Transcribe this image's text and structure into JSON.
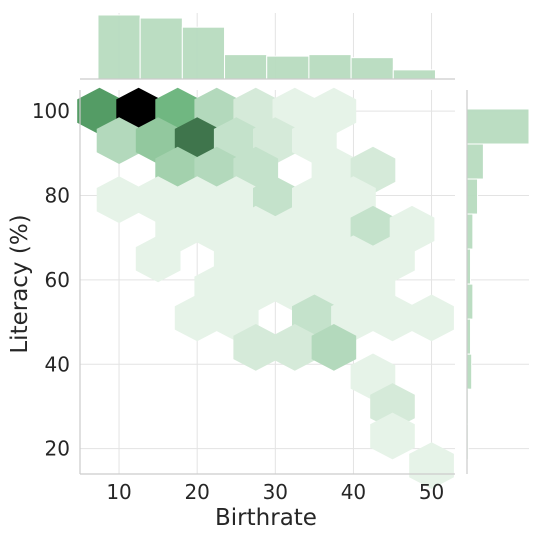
{
  "chart_data": {
    "type": "hexbin-jointplot",
    "xlabel": "Birthrate",
    "ylabel": "Literacy (%)",
    "xlim": [
      5.0,
      53.0
    ],
    "ylim": [
      14.0,
      105.0
    ],
    "x_ticks": [
      10,
      20,
      30,
      40,
      50
    ],
    "y_ticks": [
      20,
      40,
      60,
      80,
      100
    ],
    "x_tick_labels": [
      "10",
      "20",
      "30",
      "40",
      "50"
    ],
    "y_tick_labels": [
      "20",
      "40",
      "60",
      "80",
      "100"
    ],
    "grid": true,
    "cmap": [
      "#f7fbf7",
      "#5faf72",
      "#000000"
    ],
    "hexbins": [
      {
        "x": 7.5,
        "y": 100,
        "count": 5
      },
      {
        "x": 12.5,
        "y": 100,
        "count": 9
      },
      {
        "x": 17.5,
        "y": 100,
        "count": 4
      },
      {
        "x": 22.5,
        "y": 100,
        "count": 2
      },
      {
        "x": 27.5,
        "y": 100,
        "count": 1
      },
      {
        "x": 32.5,
        "y": 100,
        "count": 0.5
      },
      {
        "x": 37.5,
        "y": 100,
        "count": 0.5
      },
      {
        "x": 10,
        "y": 93,
        "count": 2
      },
      {
        "x": 15,
        "y": 93,
        "count": 3
      },
      {
        "x": 20,
        "y": 93,
        "count": 6
      },
      {
        "x": 25,
        "y": 93,
        "count": 1.5
      },
      {
        "x": 30,
        "y": 93,
        "count": 1
      },
      {
        "x": 35,
        "y": 93,
        "count": 0.5
      },
      {
        "x": 17.5,
        "y": 86,
        "count": 2.5
      },
      {
        "x": 22.5,
        "y": 86,
        "count": 2
      },
      {
        "x": 27.5,
        "y": 86,
        "count": 1.5
      },
      {
        "x": 37.5,
        "y": 86,
        "count": 0.5
      },
      {
        "x": 42.5,
        "y": 86,
        "count": 1
      },
      {
        "x": 10,
        "y": 79,
        "count": 0.5
      },
      {
        "x": 15,
        "y": 79,
        "count": 0.5
      },
      {
        "x": 20,
        "y": 79,
        "count": 0.5
      },
      {
        "x": 25,
        "y": 79,
        "count": 0.5
      },
      {
        "x": 30,
        "y": 79,
        "count": 1.5
      },
      {
        "x": 35,
        "y": 79,
        "count": 0.5
      },
      {
        "x": 40,
        "y": 79,
        "count": 0.5
      },
      {
        "x": 17.5,
        "y": 72,
        "count": 0.5
      },
      {
        "x": 22.5,
        "y": 72,
        "count": 0.5
      },
      {
        "x": 27.5,
        "y": 72,
        "count": 0.5
      },
      {
        "x": 32.5,
        "y": 72,
        "count": 0.5
      },
      {
        "x": 37.5,
        "y": 72,
        "count": 0.5
      },
      {
        "x": 42.5,
        "y": 72,
        "count": 1.5
      },
      {
        "x": 47.5,
        "y": 72,
        "count": 0.5
      },
      {
        "x": 15,
        "y": 65,
        "count": 0.5
      },
      {
        "x": 25,
        "y": 65,
        "count": 0.5
      },
      {
        "x": 30,
        "y": 65,
        "count": 0.5
      },
      {
        "x": 35,
        "y": 65,
        "count": 0.5
      },
      {
        "x": 40,
        "y": 65,
        "count": 0.5
      },
      {
        "x": 45,
        "y": 65,
        "count": 0.5
      },
      {
        "x": 22.5,
        "y": 58,
        "count": 0.5
      },
      {
        "x": 27.5,
        "y": 58,
        "count": 0.5
      },
      {
        "x": 32.5,
        "y": 58,
        "count": 0.5
      },
      {
        "x": 37.5,
        "y": 58,
        "count": 0.5
      },
      {
        "x": 42.5,
        "y": 58,
        "count": 0.5
      },
      {
        "x": 20,
        "y": 51,
        "count": 0.5
      },
      {
        "x": 25,
        "y": 51,
        "count": 0.5
      },
      {
        "x": 35,
        "y": 51,
        "count": 1.5
      },
      {
        "x": 40,
        "y": 51,
        "count": 0.5
      },
      {
        "x": 45,
        "y": 51,
        "count": 0.5
      },
      {
        "x": 50,
        "y": 51,
        "count": 0.5
      },
      {
        "x": 27.5,
        "y": 44,
        "count": 1
      },
      {
        "x": 32.5,
        "y": 44,
        "count": 1
      },
      {
        "x": 37.5,
        "y": 44,
        "count": 2
      },
      {
        "x": 42.5,
        "y": 37,
        "count": 0.5
      },
      {
        "x": 45,
        "y": 30,
        "count": 1
      },
      {
        "x": 45,
        "y": 23,
        "count": 0.5
      },
      {
        "x": 50,
        "y": 16,
        "count": 0.5
      }
    ],
    "marginal_x": {
      "bin_edges": [
        7.3,
        12.7,
        18.1,
        23.5,
        28.9,
        34.3,
        39.7,
        45.1,
        50.5
      ],
      "counts": [
        42,
        40,
        34,
        16,
        15,
        16,
        14,
        6
      ]
    },
    "marginal_y": {
      "bin_edges": [
        100.5,
        92.2,
        83.9,
        75.6,
        67.3,
        59.0,
        50.7,
        42.4,
        34.1,
        25.8,
        17.5
      ],
      "counts": [
        53,
        14,
        9,
        5,
        3,
        5,
        3,
        4,
        1,
        1
      ]
    }
  }
}
